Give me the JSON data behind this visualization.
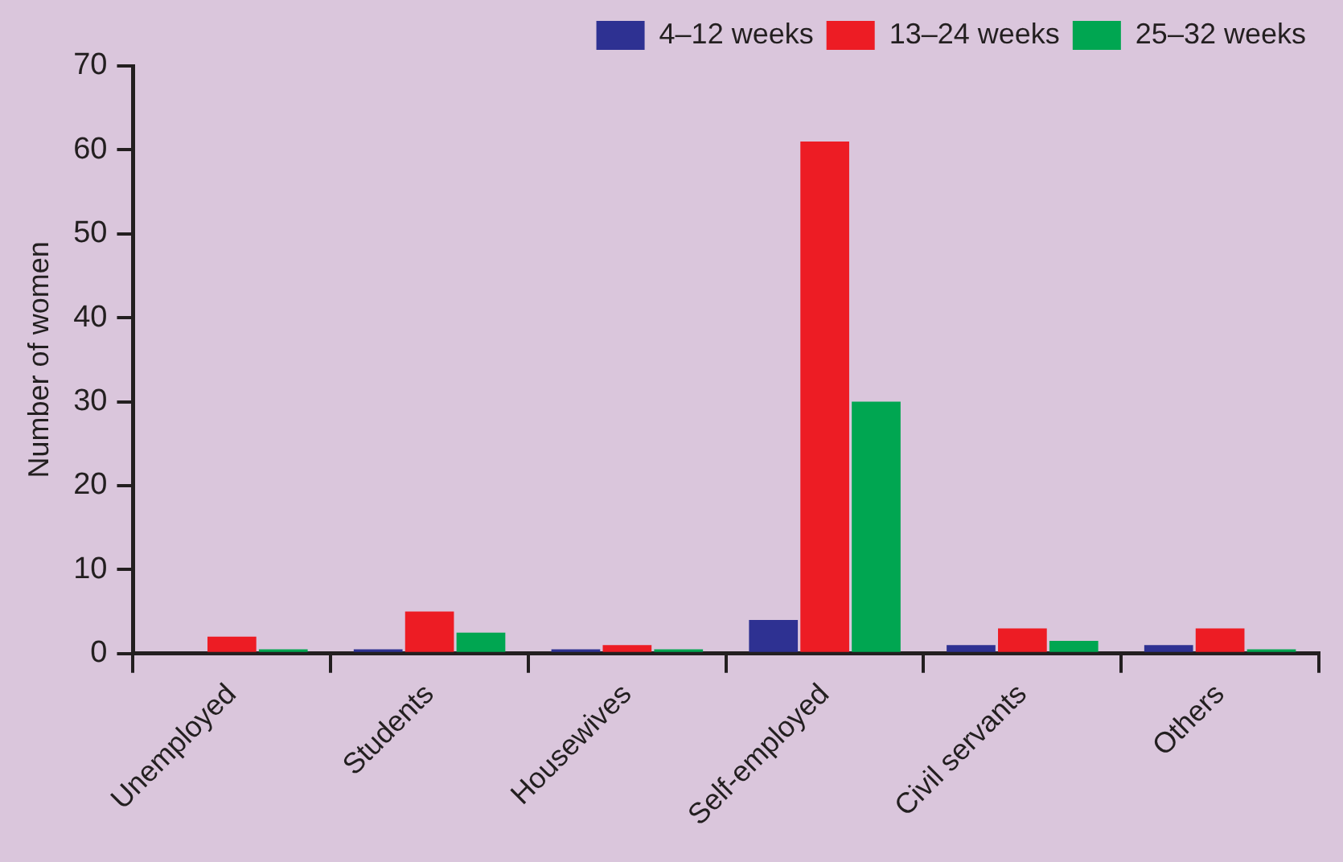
{
  "chart_data": {
    "type": "bar",
    "ylabel": "Number of women",
    "categories": [
      "Unemployed",
      "Students",
      "Housewives",
      "Self-employed",
      "Civil servants",
      "Others"
    ],
    "series": [
      {
        "name": "4–12 weeks",
        "color": "#2e3192",
        "values": [
          0,
          0.5,
          0.5,
          4,
          1,
          1
        ]
      },
      {
        "name": "13–24 weeks",
        "color": "#ed1c24",
        "values": [
          2,
          5,
          1,
          61,
          3,
          3
        ]
      },
      {
        "name": "25–32 weeks",
        "color": "#00a651",
        "values": [
          0.5,
          2.5,
          0.5,
          30,
          1.5,
          0.5
        ]
      }
    ],
    "ylim": [
      0,
      70
    ],
    "yticks": [
      0,
      10,
      20,
      30,
      40,
      50,
      60,
      70
    ],
    "grid": false,
    "legend": "top right"
  }
}
